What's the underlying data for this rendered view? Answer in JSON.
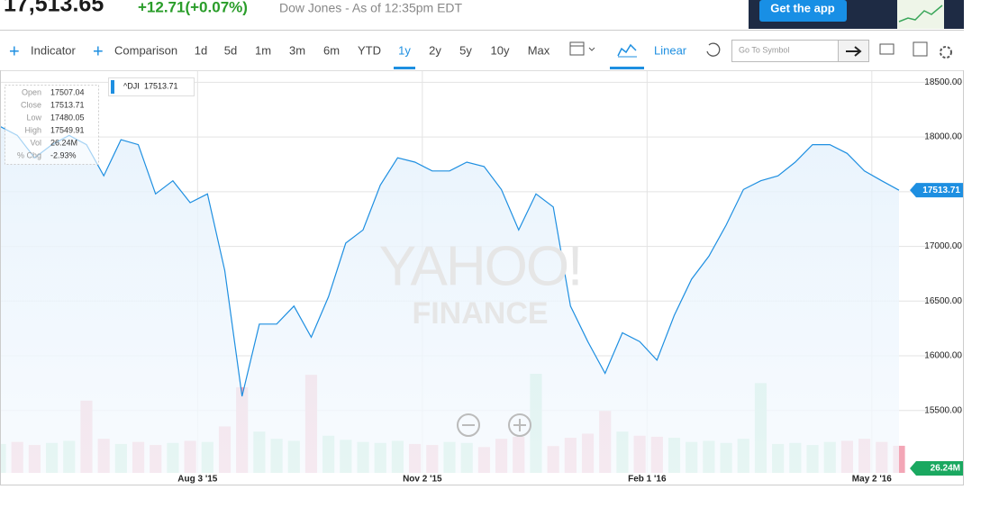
{
  "header": {
    "price": "17,513.65",
    "change": "+12.71(+0.07%)",
    "source": "Dow Jones - As of 12:35pm EDT",
    "app_button": "Get the app"
  },
  "toolbar": {
    "indicator": "Indicator",
    "comparison": "Comparison",
    "ranges": [
      "1d",
      "5d",
      "1m",
      "3m",
      "6m",
      "YTD",
      "1y",
      "2y",
      "5y",
      "10y",
      "Max"
    ],
    "scale": "Linear",
    "symbol_placeholder": "Go To Symbol"
  },
  "watermark": [
    "YAHOO!",
    "FINANCE"
  ],
  "chart_data": {
    "type": "line",
    "x": [
      "2015-05-15",
      "2015-05-22",
      "2015-05-29",
      "2015-06-05",
      "2015-06-12",
      "2015-06-19",
      "2015-06-26",
      "2015-07-03",
      "2015-07-10",
      "2015-07-17",
      "2015-07-24",
      "2015-07-31",
      "2015-08-07",
      "2015-08-14",
      "2015-08-21",
      "2015-08-28",
      "2015-09-04",
      "2015-09-11",
      "2015-09-18",
      "2015-09-25",
      "2015-10-02",
      "2015-10-09",
      "2015-10-16",
      "2015-10-23",
      "2015-10-30",
      "2015-11-06",
      "2015-11-13",
      "2015-11-20",
      "2015-11-27",
      "2015-12-04",
      "2015-12-11",
      "2015-12-18",
      "2015-12-25",
      "2016-01-01",
      "2016-01-08",
      "2016-01-15",
      "2016-01-22",
      "2016-01-29",
      "2016-02-05",
      "2016-02-12",
      "2016-02-19",
      "2016-02-26",
      "2016-03-04",
      "2016-03-11",
      "2016-03-18",
      "2016-03-25",
      "2016-04-01",
      "2016-04-08",
      "2016-04-15",
      "2016-04-22",
      "2016-04-29",
      "2016-05-06",
      "2016-05-13"
    ],
    "series": [
      {
        "name": "^DJI",
        "color": "#1e8fe1",
        "values": [
          18097,
          18015,
          17810,
          17930,
          18015,
          17930,
          17645,
          17975,
          17930,
          17480,
          17600,
          17400,
          17480,
          16780,
          15630,
          16290,
          16290,
          16455,
          16170,
          16540,
          17030,
          17150,
          17560,
          17810,
          17770,
          17690,
          17690,
          17770,
          17730,
          17520,
          17150,
          17480,
          17360,
          16455,
          16130,
          15840,
          16210,
          16130,
          15960,
          16370,
          16700,
          16910,
          17195,
          17520,
          17600,
          17645,
          17770,
          17930,
          17930,
          17850,
          17690,
          17600,
          17513.71
        ]
      }
    ],
    "volume": {
      "up_color": "#a6e3c7",
      "down_color": "#f3a6b6",
      "values": [
        28,
        30,
        27,
        29,
        31,
        70,
        33,
        28,
        30,
        27,
        29,
        31,
        30,
        45,
        83,
        40,
        33,
        31,
        95,
        36,
        32,
        30,
        29,
        31,
        28,
        27,
        30,
        29,
        25,
        33,
        35,
        96,
        26,
        34,
        38,
        60,
        40,
        36,
        35,
        34,
        30,
        31,
        29,
        33,
        87,
        28,
        29,
        27,
        30,
        31,
        33,
        30,
        26.24
      ]
    },
    "xlim": [
      "2015-05-15",
      "2016-05-13"
    ],
    "xticks": [
      {
        "value": "2015-08-03",
        "label": "Aug 3 '15"
      },
      {
        "value": "2015-11-02",
        "label": "Nov 2 '15"
      },
      {
        "value": "2016-02-01",
        "label": "Feb 1 '16"
      },
      {
        "value": "2016-05-02",
        "label": "May 2 '16"
      }
    ],
    "ylim": [
      14930,
      18610
    ],
    "yticks": [
      {
        "value": 15500,
        "label": "15500.00"
      },
      {
        "value": 16000,
        "label": "16000.00"
      },
      {
        "value": 16500,
        "label": "16500.00"
      },
      {
        "value": 17000,
        "label": "17000.00"
      },
      {
        "value": 17500,
        "label": "17500.00"
      },
      {
        "value": 18000,
        "label": "18000.00"
      },
      {
        "value": 18500,
        "label": "18500.00"
      }
    ],
    "grid": true,
    "tooltip": {
      "rows": [
        [
          "Open",
          17507.04
        ],
        [
          "Close",
          17513.71
        ],
        [
          "Low",
          17480.05
        ],
        [
          "High",
          17549.91
        ],
        [
          "Vol",
          "26.24M"
        ],
        [
          "% Chg",
          "-2.93%"
        ]
      ]
    }
  }
}
